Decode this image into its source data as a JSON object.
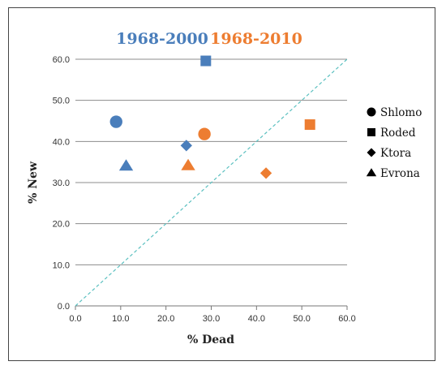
{
  "colors": {
    "period_1": "#4a7ebb",
    "period_2": "#ed7d31",
    "gridline": "#8c8c8c",
    "diagonal": "#5bc0c0",
    "legend_marker": "#000000"
  },
  "chart_data": {
    "type": "scatter",
    "title": "",
    "xlabel": "% Dead",
    "ylabel": "% New",
    "xlim": [
      0,
      60
    ],
    "ylim": [
      0,
      60
    ],
    "x_ticks": [
      "0.0",
      "10.0",
      "20.0",
      "30.0",
      "40.0",
      "50.0",
      "60.0"
    ],
    "y_ticks": [
      "0.0",
      "10.0",
      "20.0",
      "30.0",
      "40.0",
      "50.0",
      "60.0"
    ],
    "grid": "horizontal",
    "reference_line": {
      "style": "dashed",
      "from": [
        0,
        0
      ],
      "to": [
        60,
        60
      ]
    },
    "period_labels": [
      "1968-2000",
      "1968-2010"
    ],
    "legend": {
      "placement": "right",
      "entries": [
        {
          "name": "Shlomo",
          "marker": "circle"
        },
        {
          "name": "Roded",
          "marker": "square"
        },
        {
          "name": "Ktora",
          "marker": "diamond"
        },
        {
          "name": "Evrona",
          "marker": "triangle"
        }
      ]
    },
    "series": [
      {
        "name": "1968-2000",
        "points": [
          {
            "site": "Shlomo",
            "x": 9.0,
            "y": 44.8
          },
          {
            "site": "Roded",
            "x": 28.8,
            "y": 59.6
          },
          {
            "site": "Ktora",
            "x": 24.5,
            "y": 39.0
          },
          {
            "site": "Evrona",
            "x": 11.2,
            "y": 34.1
          }
        ]
      },
      {
        "name": "1968-2010",
        "points": [
          {
            "site": "Shlomo",
            "x": 28.5,
            "y": 41.8
          },
          {
            "site": "Roded",
            "x": 51.8,
            "y": 44.1
          },
          {
            "site": "Ktora",
            "x": 42.1,
            "y": 32.3
          },
          {
            "site": "Evrona",
            "x": 24.9,
            "y": 34.2
          }
        ]
      }
    ]
  }
}
